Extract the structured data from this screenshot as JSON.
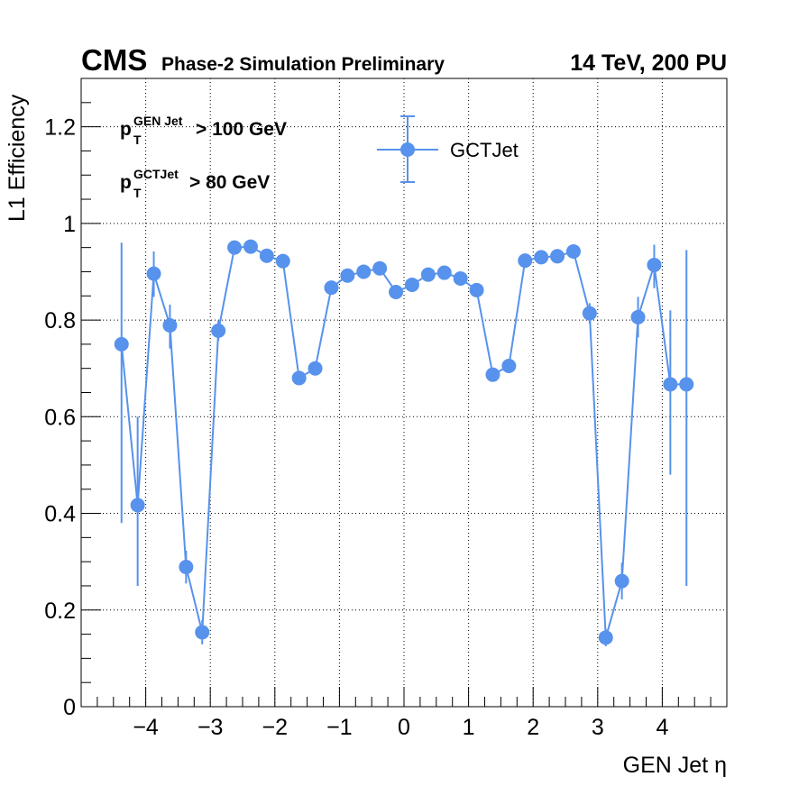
{
  "header": {
    "experiment": "CMS",
    "subtitle": "Phase-2 Simulation Preliminary",
    "conditions": "14 TeV, 200 PU"
  },
  "annotations": {
    "cut1": {
      "p": "p",
      "sub": "T",
      "sup": "GEN Jet",
      "rest": "> 100 GeV"
    },
    "cut2": {
      "p": "p",
      "sub": "T",
      "sup": "GCTJet",
      "rest": "> 80 GeV"
    }
  },
  "colors": {
    "series": "#5792ec",
    "frame": "#000000",
    "grid": "#000000"
  },
  "chart_data": {
    "type": "scatter",
    "title": "",
    "xlabel": "GEN Jet η",
    "ylabel": "L1 Efficiency",
    "xlim": [
      -5,
      5
    ],
    "ylim": [
      0,
      1.3
    ],
    "grid": true,
    "legend_position": "top-center",
    "x_ticks": [
      -4,
      -3,
      -2,
      -1,
      0,
      1,
      2,
      3,
      4
    ],
    "x_tick_labels": [
      "−4",
      "−3",
      "−2",
      "−1",
      "0",
      "1",
      "2",
      "3",
      "4"
    ],
    "y_ticks": [
      0,
      0.2,
      0.4,
      0.6,
      0.8,
      1,
      1.2
    ],
    "y_tick_labels": [
      "0",
      "0.2",
      "0.4",
      "0.6",
      "0.8",
      "1",
      "1.2"
    ],
    "series": [
      {
        "name": "GCTJet",
        "x": [
          -4.375,
          -4.125,
          -3.875,
          -3.625,
          -3.375,
          -3.125,
          -2.875,
          -2.625,
          -2.375,
          -2.125,
          -1.875,
          -1.625,
          -1.375,
          -1.125,
          -0.875,
          -0.625,
          -0.375,
          -0.125,
          0.125,
          0.375,
          0.625,
          0.875,
          1.125,
          1.375,
          1.625,
          1.875,
          2.125,
          2.375,
          2.625,
          2.875,
          3.125,
          3.375,
          3.625,
          3.875,
          4.125,
          4.375
        ],
        "y": [
          0.75,
          0.417,
          0.896,
          0.789,
          0.289,
          0.154,
          0.778,
          0.95,
          0.952,
          0.933,
          0.922,
          0.68,
          0.7,
          0.867,
          0.892,
          0.9,
          0.907,
          0.858,
          0.873,
          0.894,
          0.898,
          0.886,
          0.862,
          0.687,
          0.705,
          0.923,
          0.93,
          0.932,
          0.942,
          0.814,
          0.143,
          0.26,
          0.806,
          0.914,
          0.667,
          0.667
        ],
        "err_low": [
          0.37,
          0.167,
          0.048,
          0.048,
          0.034,
          0.025,
          0.021,
          0.01,
          0.009,
          0.01,
          0.009,
          0.01,
          0.01,
          0.008,
          0.007,
          0.007,
          0.007,
          0.008,
          0.008,
          0.007,
          0.007,
          0.007,
          0.008,
          0.01,
          0.01,
          0.009,
          0.009,
          0.009,
          0.01,
          0.021,
          0.018,
          0.038,
          0.042,
          0.048,
          0.187,
          0.417
        ],
        "err_high": [
          0.21,
          0.183,
          0.046,
          0.043,
          0.034,
          0.025,
          0.021,
          0.01,
          0.009,
          0.01,
          0.009,
          0.01,
          0.01,
          0.008,
          0.007,
          0.007,
          0.007,
          0.008,
          0.008,
          0.007,
          0.007,
          0.007,
          0.008,
          0.01,
          0.01,
          0.009,
          0.009,
          0.009,
          0.01,
          0.021,
          0.018,
          0.038,
          0.042,
          0.042,
          0.153,
          0.278
        ]
      }
    ]
  }
}
